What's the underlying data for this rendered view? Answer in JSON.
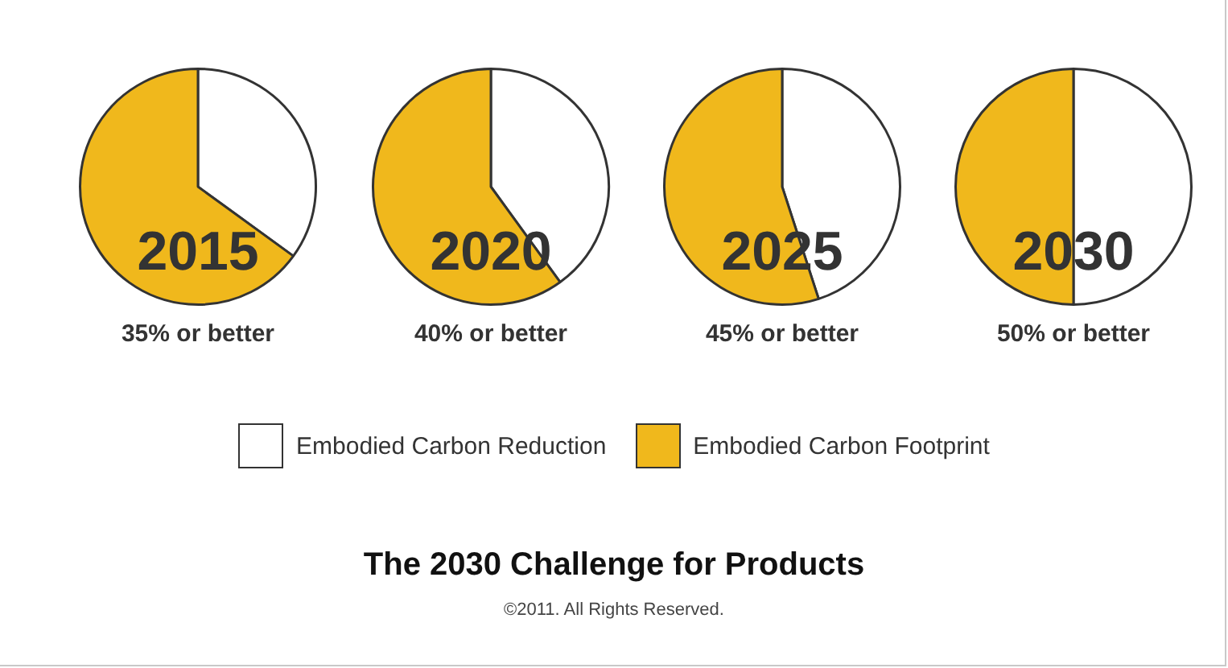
{
  "chart_data": [
    {
      "type": "pie",
      "title": "2015",
      "subtitle": "35% or better",
      "categories": [
        "Embodied Carbon Reduction",
        "Embodied Carbon Footprint"
      ],
      "values": [
        35,
        65
      ],
      "colors": [
        "#ffffff",
        "#f0b81c"
      ],
      "legend": "bottom"
    },
    {
      "type": "pie",
      "title": "2020",
      "subtitle": "40% or better",
      "categories": [
        null,
        null
      ],
      "values": [
        40,
        60
      ],
      "colors": [
        "#ffffff",
        "#f0b81c"
      ]
    },
    {
      "type": "pie",
      "title": "2025",
      "subtitle": "45% or better",
      "categories": [
        null,
        null
      ],
      "values": [
        45,
        55
      ],
      "colors": [
        "#ffffff",
        "#f0b81c"
      ]
    },
    {
      "type": "pie",
      "title": "2030",
      "subtitle": "50% or better",
      "categories": [
        null,
        null
      ],
      "values": [
        50,
        50
      ],
      "colors": [
        "#ffffff",
        "#f0b81c"
      ]
    },
    {
      "type": "other",
      "title": "The 2030 Challenge for Products",
      "annotations": [
        "©2011. All Rights Reserved."
      ]
    }
  ]
}
